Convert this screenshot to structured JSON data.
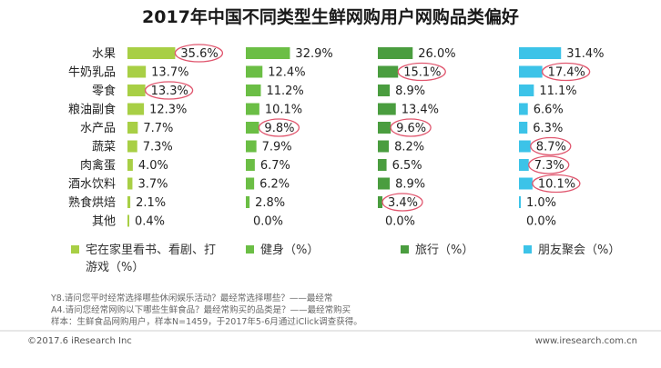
{
  "chart_data": {
    "type": "bar",
    "title": "2017年中国不同类型生鲜网购用户网购品类偏好",
    "categories": [
      "水果",
      "牛奶乳品",
      "零食",
      "粮油副食",
      "水产品",
      "蔬菜",
      "肉禽蛋",
      "酒水饮料",
      "熟食烘焙",
      "其他"
    ],
    "series": [
      {
        "name": "宅在家里看书、看剧、打游戏（%）",
        "legend_lines": [
          "宅在家里看书、看剧、打",
          "游戏（%）"
        ],
        "color": "#a8cf45",
        "values": [
          35.6,
          13.7,
          13.3,
          12.3,
          7.7,
          7.3,
          4.0,
          3.7,
          2.1,
          0.4
        ],
        "labels": [
          "35.6%",
          "13.7%",
          "13.3%",
          "12.3%",
          "7.7%",
          "7.3%",
          "4.0%",
          "3.7%",
          "2.1%",
          "0.4%"
        ],
        "circled": [
          0,
          2
        ]
      },
      {
        "name": "健身（%）",
        "legend_lines": [
          "健身（%）"
        ],
        "color": "#6bbe45",
        "values": [
          32.9,
          12.4,
          11.2,
          10.1,
          9.8,
          7.9,
          6.7,
          6.2,
          2.8,
          0.0
        ],
        "labels": [
          "32.9%",
          "12.4%",
          "11.2%",
          "10.1%",
          "9.8%",
          "7.9%",
          "6.7%",
          "6.2%",
          "2.8%",
          "0.0%"
        ],
        "circled": [
          4
        ]
      },
      {
        "name": "旅行（%）",
        "legend_lines": [
          "旅行（%）"
        ],
        "color": "#4a9d3f",
        "values": [
          26.0,
          15.1,
          8.9,
          13.4,
          9.6,
          8.2,
          6.5,
          8.9,
          3.4,
          0.0
        ],
        "labels": [
          "26.0%",
          "15.1%",
          "8.9%",
          "13.4%",
          "9.6%",
          "8.2%",
          "6.5%",
          "8.9%",
          "3.4%",
          "0.0%"
        ],
        "circled": [
          1,
          4,
          8
        ]
      },
      {
        "name": "朋友聚会（%）",
        "legend_lines": [
          "朋友聚会（%）"
        ],
        "color": "#3cc3e8",
        "values": [
          31.4,
          17.4,
          11.1,
          6.6,
          6.3,
          8.7,
          7.3,
          10.1,
          1.0,
          0.0
        ],
        "labels": [
          "31.4%",
          "17.4%",
          "11.1%",
          "6.6%",
          "6.3%",
          "8.7%",
          "7.3%",
          "10.1%",
          "1.0%",
          "0.0%"
        ],
        "circled": [
          1,
          5,
          6,
          7
        ]
      }
    ],
    "highlight_color": "#e0566e",
    "notes": [
      "Y8.请问您平时经常选择哪些休闲娱乐活动？最经常选择哪些？——最经常",
      "A4.请问您经常网购以下哪些生鲜食品？最经常购买的品类是？——最经常购买",
      "样本：生鲜食品网购用户，样本N=1459，于2017年5-6月通过iClick调查获得。"
    ]
  },
  "footer": {
    "copyright": "©2017.6 iResearch Inc",
    "website": "www.iresearch.com.cn"
  }
}
